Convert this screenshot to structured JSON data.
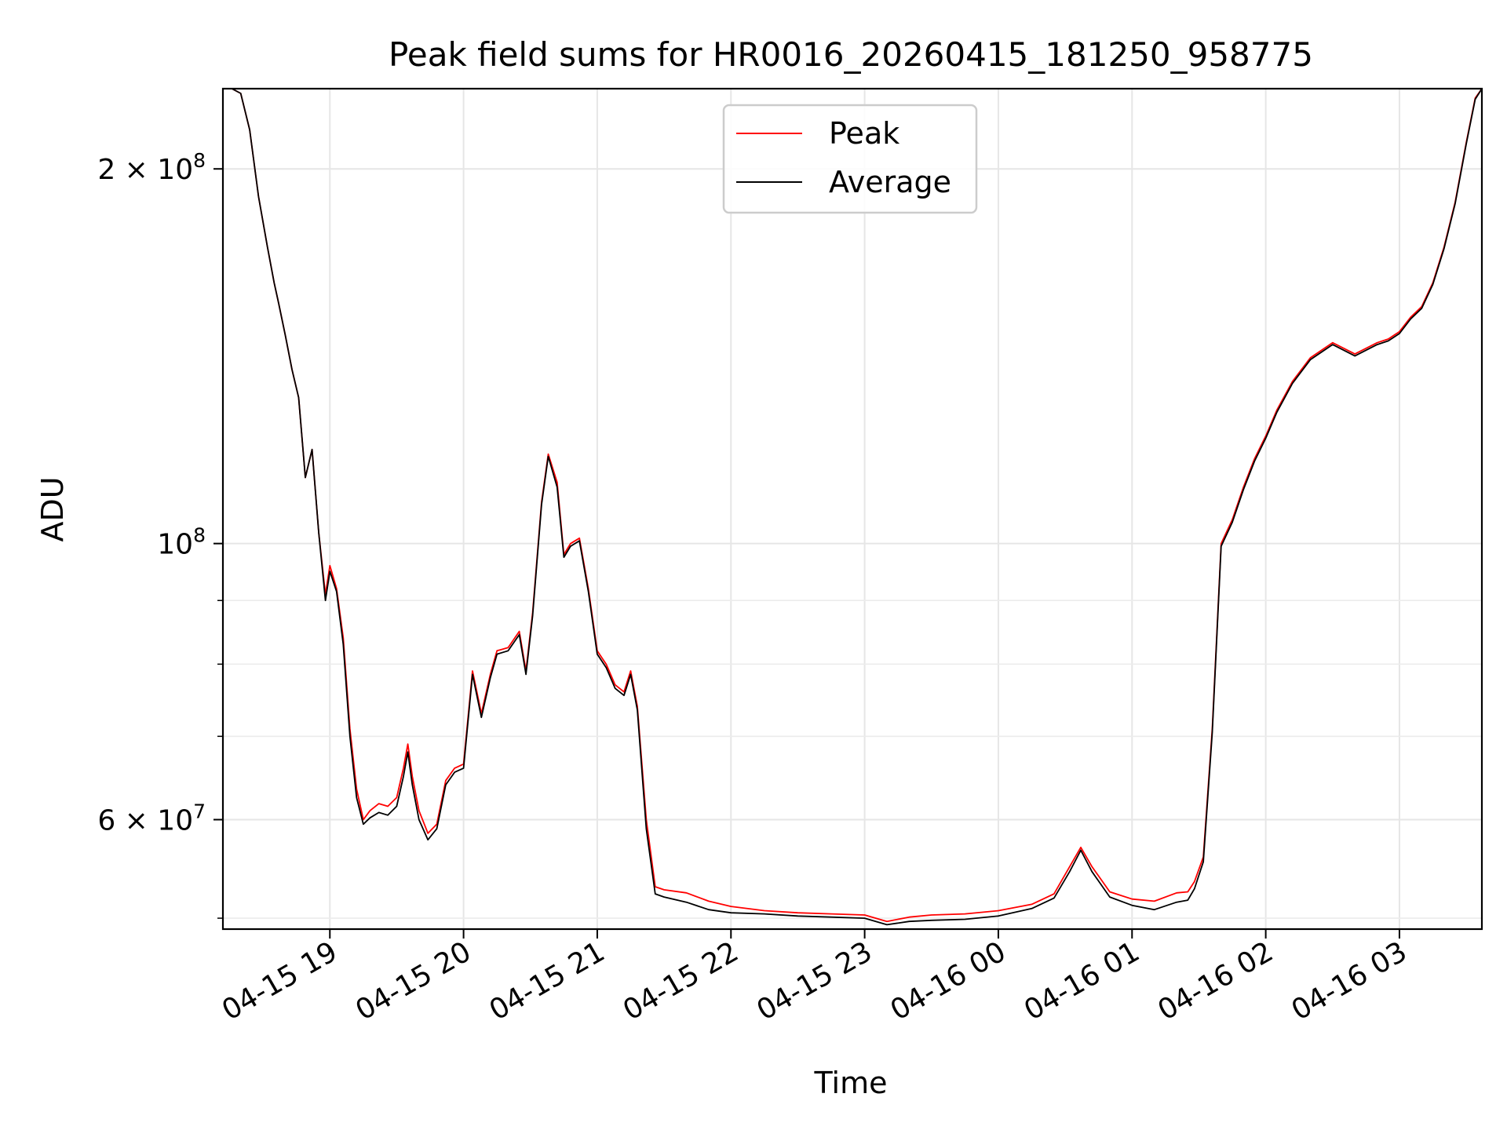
{
  "chart_data": {
    "type": "line",
    "title": "Peak field sums for HR0016_20260415_181250_958775",
    "xlabel": "Time",
    "ylabel": "ADU",
    "yscale": "log",
    "grid": true,
    "legend_position": "top-center",
    "xlim": [
      "2026-04-15 18:12",
      "2026-04-16 03:37"
    ],
    "ylim": [
      49000000,
      232000000
    ],
    "x_ticks": [
      {
        "value": "2026-04-15 19:00",
        "label": "04-15 19"
      },
      {
        "value": "2026-04-15 20:00",
        "label": "04-15 20"
      },
      {
        "value": "2026-04-15 21:00",
        "label": "04-15 21"
      },
      {
        "value": "2026-04-15 22:00",
        "label": "04-15 22"
      },
      {
        "value": "2026-04-15 23:00",
        "label": "04-15 23"
      },
      {
        "value": "2026-04-16 00:00",
        "label": "04-16 00"
      },
      {
        "value": "2026-04-16 01:00",
        "label": "04-16 01"
      },
      {
        "value": "2026-04-16 02:00",
        "label": "04-16 02"
      },
      {
        "value": "2026-04-16 03:00",
        "label": "04-16 03"
      }
    ],
    "y_ticks": [
      {
        "value": 60000000,
        "label": "6 × 10⁷",
        "mantissa": "6 × 10",
        "exp": "7"
      },
      {
        "value": 100000000,
        "label": "10⁸",
        "mantissa": "10",
        "exp": "8"
      },
      {
        "value": 200000000,
        "label": "2 × 10⁸",
        "mantissa": "2 × 10",
        "exp": "8"
      }
    ],
    "y_minor_ticks": [
      50000000,
      70000000,
      80000000,
      90000000
    ],
    "series": [
      {
        "name": "Peak",
        "color": "#ff0000",
        "x": [
          "2026-04-15 18:12",
          "2026-04-15 18:16",
          "2026-04-15 18:20",
          "2026-04-15 18:24",
          "2026-04-15 18:28",
          "2026-04-15 18:32",
          "2026-04-15 18:35",
          "2026-04-15 18:37",
          "2026-04-15 18:40",
          "2026-04-15 18:43",
          "2026-04-15 18:46",
          "2026-04-15 18:49",
          "2026-04-15 18:52",
          "2026-04-15 18:55",
          "2026-04-15 18:58",
          "2026-04-15 19:00",
          "2026-04-15 19:03",
          "2026-04-15 19:06",
          "2026-04-15 19:09",
          "2026-04-15 19:12",
          "2026-04-15 19:15",
          "2026-04-15 19:18",
          "2026-04-15 19:22",
          "2026-04-15 19:26",
          "2026-04-15 19:30",
          "2026-04-15 19:33",
          "2026-04-15 19:35",
          "2026-04-15 19:37",
          "2026-04-15 19:40",
          "2026-04-15 19:44",
          "2026-04-15 19:48",
          "2026-04-15 19:52",
          "2026-04-15 19:56",
          "2026-04-15 20:00",
          "2026-04-15 20:04",
          "2026-04-15 20:08",
          "2026-04-15 20:12",
          "2026-04-15 20:15",
          "2026-04-15 20:20",
          "2026-04-15 20:25",
          "2026-04-15 20:28",
          "2026-04-15 20:31",
          "2026-04-15 20:35",
          "2026-04-15 20:38",
          "2026-04-15 20:42",
          "2026-04-15 20:45",
          "2026-04-15 20:48",
          "2026-04-15 20:52",
          "2026-04-15 20:56",
          "2026-04-15 21:00",
          "2026-04-15 21:04",
          "2026-04-15 21:08",
          "2026-04-15 21:12",
          "2026-04-15 21:15",
          "2026-04-15 21:18",
          "2026-04-15 21:22",
          "2026-04-15 21:26",
          "2026-04-15 21:30",
          "2026-04-15 21:40",
          "2026-04-15 21:50",
          "2026-04-15 22:00",
          "2026-04-15 22:15",
          "2026-04-15 22:30",
          "2026-04-15 22:45",
          "2026-04-15 23:00",
          "2026-04-15 23:10",
          "2026-04-15 23:20",
          "2026-04-15 23:30",
          "2026-04-15 23:45",
          "2026-04-16 00:00",
          "2026-04-16 00:15",
          "2026-04-16 00:25",
          "2026-04-16 00:32",
          "2026-04-16 00:37",
          "2026-04-16 00:42",
          "2026-04-16 00:50",
          "2026-04-16 01:00",
          "2026-04-16 01:10",
          "2026-04-16 01:20",
          "2026-04-16 01:25",
          "2026-04-16 01:28",
          "2026-04-16 01:32",
          "2026-04-16 01:36",
          "2026-04-16 01:40",
          "2026-04-16 01:45",
          "2026-04-16 01:50",
          "2026-04-16 01:55",
          "2026-04-16 02:00",
          "2026-04-16 02:05",
          "2026-04-16 02:12",
          "2026-04-16 02:20",
          "2026-04-16 02:30",
          "2026-04-16 02:40",
          "2026-04-16 02:50",
          "2026-04-16 02:55",
          "2026-04-16 03:00",
          "2026-04-16 03:05",
          "2026-04-16 03:10",
          "2026-04-16 03:15",
          "2026-04-16 03:20",
          "2026-04-16 03:25",
          "2026-04-16 03:30",
          "2026-04-16 03:34",
          "2026-04-16 03:37"
        ],
        "y": [
          232000000,
          232000000,
          230000000,
          215000000,
          190000000,
          173000000,
          162000000,
          156000000,
          147000000,
          138000000,
          131000000,
          113000000,
          119000000,
          102000000,
          91000000,
          96000000,
          92000000,
          84000000,
          71000000,
          63500000,
          60000000,
          61000000,
          61800000,
          61500000,
          62500000,
          66000000,
          69000000,
          65000000,
          61000000,
          58500000,
          59500000,
          64500000,
          66000000,
          66500000,
          79000000,
          73000000,
          78500000,
          82000000,
          82500000,
          85000000,
          79000000,
          88000000,
          108000000,
          118000000,
          112000000,
          98000000,
          100000000,
          101000000,
          92000000,
          82000000,
          80000000,
          77000000,
          76000000,
          79000000,
          74000000,
          60000000,
          53000000,
          52700000,
          52400000,
          51600000,
          51100000,
          50700000,
          50500000,
          50400000,
          50300000,
          49700000,
          50100000,
          50300000,
          50400000,
          50700000,
          51300000,
          52300000,
          55000000,
          57000000,
          55000000,
          52500000,
          51800000,
          51600000,
          52400000,
          52500000,
          53500000,
          56000000,
          71000000,
          100000000,
          104500000,
          111000000,
          117000000,
          122000000,
          128000000,
          135000000,
          141000000,
          145000000,
          142000000,
          145000000,
          146000000,
          148000000,
          152000000,
          155000000,
          162000000,
          173000000,
          188000000,
          210000000,
          228000000,
          232000000
        ]
      },
      {
        "name": "Average",
        "color": "#000000",
        "x": [
          "2026-04-15 18:12",
          "2026-04-15 18:16",
          "2026-04-15 18:20",
          "2026-04-15 18:24",
          "2026-04-15 18:28",
          "2026-04-15 18:32",
          "2026-04-15 18:35",
          "2026-04-15 18:37",
          "2026-04-15 18:40",
          "2026-04-15 18:43",
          "2026-04-15 18:46",
          "2026-04-15 18:49",
          "2026-04-15 18:52",
          "2026-04-15 18:55",
          "2026-04-15 18:58",
          "2026-04-15 19:00",
          "2026-04-15 19:03",
          "2026-04-15 19:06",
          "2026-04-15 19:09",
          "2026-04-15 19:12",
          "2026-04-15 19:15",
          "2026-04-15 19:18",
          "2026-04-15 19:22",
          "2026-04-15 19:26",
          "2026-04-15 19:30",
          "2026-04-15 19:33",
          "2026-04-15 19:35",
          "2026-04-15 19:37",
          "2026-04-15 19:40",
          "2026-04-15 19:44",
          "2026-04-15 19:48",
          "2026-04-15 19:52",
          "2026-04-15 19:56",
          "2026-04-15 20:00",
          "2026-04-15 20:04",
          "2026-04-15 20:08",
          "2026-04-15 20:12",
          "2026-04-15 20:15",
          "2026-04-15 20:20",
          "2026-04-15 20:25",
          "2026-04-15 20:28",
          "2026-04-15 20:31",
          "2026-04-15 20:35",
          "2026-04-15 20:38",
          "2026-04-15 20:42",
          "2026-04-15 20:45",
          "2026-04-15 20:48",
          "2026-04-15 20:52",
          "2026-04-15 20:56",
          "2026-04-15 21:00",
          "2026-04-15 21:04",
          "2026-04-15 21:08",
          "2026-04-15 21:12",
          "2026-04-15 21:15",
          "2026-04-15 21:18",
          "2026-04-15 21:22",
          "2026-04-15 21:26",
          "2026-04-15 21:30",
          "2026-04-15 21:40",
          "2026-04-15 21:50",
          "2026-04-15 22:00",
          "2026-04-15 22:15",
          "2026-04-15 22:30",
          "2026-04-15 22:45",
          "2026-04-15 23:00",
          "2026-04-15 23:10",
          "2026-04-15 23:20",
          "2026-04-15 23:30",
          "2026-04-15 23:45",
          "2026-04-16 00:00",
          "2026-04-16 00:15",
          "2026-04-16 00:25",
          "2026-04-16 00:32",
          "2026-04-16 00:37",
          "2026-04-16 00:42",
          "2026-04-16 00:50",
          "2026-04-16 01:00",
          "2026-04-16 01:10",
          "2026-04-16 01:20",
          "2026-04-16 01:25",
          "2026-04-16 01:28",
          "2026-04-16 01:32",
          "2026-04-16 01:36",
          "2026-04-16 01:40",
          "2026-04-16 01:45",
          "2026-04-16 01:50",
          "2026-04-16 01:55",
          "2026-04-16 02:00",
          "2026-04-16 02:05",
          "2026-04-16 02:12",
          "2026-04-16 02:20",
          "2026-04-16 02:30",
          "2026-04-16 02:40",
          "2026-04-16 02:50",
          "2026-04-16 02:55",
          "2026-04-16 03:00",
          "2026-04-16 03:05",
          "2026-04-16 03:10",
          "2026-04-16 03:15",
          "2026-04-16 03:20",
          "2026-04-16 03:25",
          "2026-04-16 03:30",
          "2026-04-16 03:34",
          "2026-04-16 03:37"
        ],
        "y": [
          232000000,
          232000000,
          230000000,
          215000000,
          190000000,
          173000000,
          162000000,
          156000000,
          147000000,
          138000000,
          131000000,
          113000000,
          119000000,
          102000000,
          90000000,
          95000000,
          91500000,
          83000000,
          70000000,
          62500000,
          59500000,
          60200000,
          60800000,
          60500000,
          61500000,
          65000000,
          68000000,
          64000000,
          60000000,
          57800000,
          59000000,
          64000000,
          65500000,
          66000000,
          78500000,
          72500000,
          78000000,
          81500000,
          82000000,
          84500000,
          78500000,
          87500000,
          107500000,
          117500000,
          111000000,
          97500000,
          99500000,
          100500000,
          91500000,
          81500000,
          79500000,
          76500000,
          75500000,
          78500000,
          73500000,
          59000000,
          52300000,
          52000000,
          51500000,
          50800000,
          50500000,
          50400000,
          50200000,
          50100000,
          50000000,
          49400000,
          49700000,
          49800000,
          49900000,
          50200000,
          50900000,
          51900000,
          54500000,
          56700000,
          54500000,
          52000000,
          51200000,
          50800000,
          51500000,
          51700000,
          52800000,
          55500000,
          70500000,
          99500000,
          104000000,
          110500000,
          116500000,
          121500000,
          127500000,
          134500000,
          140500000,
          144500000,
          141500000,
          144500000,
          145500000,
          147500000,
          151500000,
          154500000,
          161500000,
          172500000,
          187500000,
          209500000,
          227500000,
          232000000
        ]
      }
    ]
  }
}
